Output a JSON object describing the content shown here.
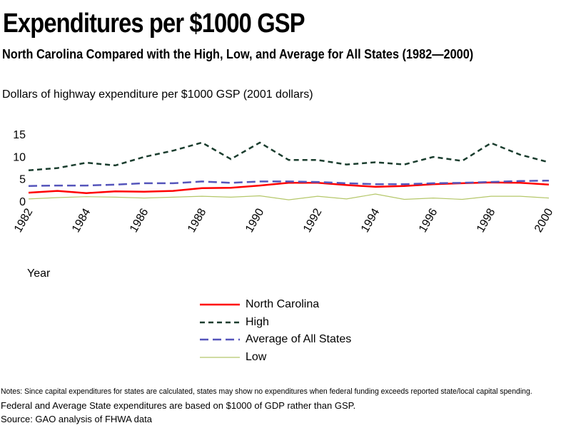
{
  "title": "Expenditures per $1000 GSP",
  "subtitle": "North Carolina Compared with the High, Low, and Average for All States (1982—2000)",
  "chart_data": {
    "type": "line",
    "ylabel": "Dollars of highway expenditure per $1000 GSP   (2001 dollars)",
    "xlabel": "Year",
    "x": [
      1982,
      1983,
      1984,
      1985,
      1986,
      1987,
      1988,
      1989,
      1990,
      1991,
      1992,
      1993,
      1994,
      1995,
      1996,
      1997,
      1998,
      1999,
      2000
    ],
    "x_tick_labels": [
      "1982",
      "1984",
      "1986",
      "1988",
      "1990",
      "1992",
      "1994",
      "1996",
      "1998",
      "2000"
    ],
    "y_tick_labels": [
      "15",
      "10",
      "5",
      "0"
    ],
    "ylim": [
      0,
      15
    ],
    "grid": false,
    "legend_position": "bottom-center",
    "series": [
      {
        "name": "North Carolina",
        "color": "#ff0000",
        "style": "solid",
        "values": [
          1.9,
          2.3,
          1.8,
          2.2,
          2.1,
          2.3,
          2.9,
          3.0,
          3.5,
          4.1,
          4.1,
          3.6,
          3.2,
          3.4,
          3.8,
          4.0,
          4.2,
          4.1,
          3.7
        ]
      },
      {
        "name": "High",
        "color": "#1a3d2e",
        "style": "dotted",
        "values": [
          6.9,
          7.4,
          8.6,
          8.0,
          9.9,
          11.3,
          13.1,
          9.4,
          13.1,
          9.2,
          9.2,
          8.2,
          8.7,
          8.2,
          9.9,
          9.0,
          13.0,
          10.4,
          8.7
        ]
      },
      {
        "name": "Average of All States",
        "color": "#5555bb",
        "style": "dashed",
        "values": [
          3.4,
          3.5,
          3.5,
          3.7,
          4.0,
          4.0,
          4.4,
          4.1,
          4.4,
          4.4,
          4.3,
          4.0,
          3.8,
          3.8,
          4.0,
          4.1,
          4.3,
          4.5,
          4.6
        ]
      },
      {
        "name": "Low",
        "color": "#b5c76a",
        "style": "solid",
        "values": [
          0.5,
          0.8,
          1.0,
          0.9,
          0.7,
          0.9,
          1.1,
          0.9,
          1.2,
          0.3,
          1.1,
          0.5,
          1.6,
          0.4,
          0.7,
          0.4,
          1.1,
          1.1,
          0.7
        ]
      }
    ]
  },
  "notes": "Notes: Since capital expenditures for states are calculated, states may show no expenditures when federal funding exceeds reported state/local capital spending.",
  "note2": "Federal and Average State expenditures are based on $1000 of GDP rather than GSP.",
  "source": "Source: GAO  analysis of FHWA data"
}
